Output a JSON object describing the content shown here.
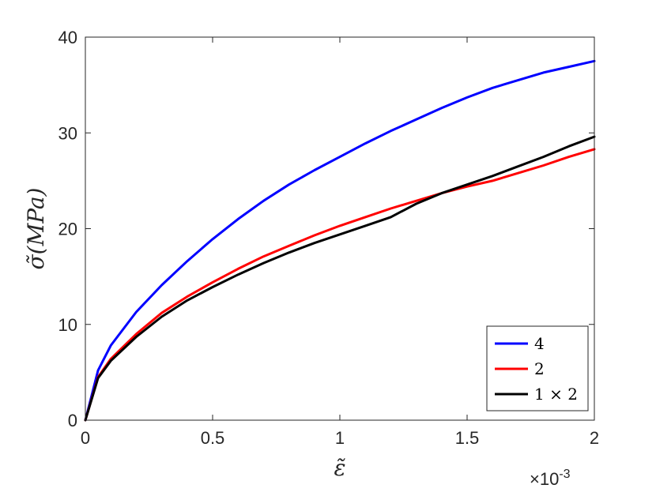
{
  "chart_data": {
    "type": "line",
    "title": "",
    "xlabel": "ε̃",
    "ylabel": "σ̃(MPa)",
    "x_multiplier_label": "×10",
    "x_multiplier_exponent": "-3",
    "xlim": [
      0,
      0.002
    ],
    "ylim": [
      0,
      40
    ],
    "x_ticks": [
      0,
      0.0005,
      0.001,
      0.0015,
      0.002
    ],
    "x_tick_labels": [
      "0",
      "0.5",
      "1",
      "1.5",
      "2"
    ],
    "y_ticks": [
      0,
      10,
      20,
      30,
      40
    ],
    "y_tick_labels": [
      "0",
      "10",
      "20",
      "30",
      "40"
    ],
    "grid": false,
    "legend_position": "bottom-right",
    "series": [
      {
        "name": "4",
        "color": "#0000ff",
        "x": [
          0,
          5e-05,
          0.0001,
          0.0002,
          0.0003,
          0.0004,
          0.0005,
          0.0006,
          0.0007,
          0.0008,
          0.0009,
          0.001,
          0.0011,
          0.0012,
          0.0013,
          0.0014,
          0.0015,
          0.0016,
          0.0017,
          0.0018,
          0.0019,
          0.002
        ],
        "y": [
          0,
          5.2,
          7.8,
          11.3,
          14.1,
          16.6,
          18.9,
          21.0,
          22.9,
          24.6,
          26.1,
          27.5,
          28.9,
          30.2,
          31.4,
          32.6,
          33.7,
          34.7,
          35.5,
          36.3,
          36.9,
          37.5
        ]
      },
      {
        "name": "2",
        "color": "#ff0000",
        "x": [
          0,
          5e-05,
          0.0001,
          0.0002,
          0.0003,
          0.0004,
          0.0005,
          0.0006,
          0.0007,
          0.0008,
          0.0009,
          0.001,
          0.0011,
          0.0012,
          0.0013,
          0.0014,
          0.0015,
          0.0016,
          0.0017,
          0.0018,
          0.0019,
          0.002
        ],
        "y": [
          0,
          4.5,
          6.4,
          9.0,
          11.2,
          12.9,
          14.4,
          15.8,
          17.1,
          18.2,
          19.3,
          20.3,
          21.2,
          22.1,
          22.9,
          23.7,
          24.4,
          25.0,
          25.8,
          26.6,
          27.5,
          28.3
        ]
      },
      {
        "name": "1 × 2",
        "color": "#000000",
        "x": [
          0,
          5e-05,
          0.0001,
          0.0002,
          0.0003,
          0.0004,
          0.0005,
          0.0006,
          0.0007,
          0.0008,
          0.0009,
          0.001,
          0.0011,
          0.0012,
          0.0013,
          0.0014,
          0.0015,
          0.0016,
          0.0017,
          0.0018,
          0.0019,
          0.002
        ],
        "y": [
          0,
          4.4,
          6.2,
          8.7,
          10.8,
          12.5,
          13.9,
          15.2,
          16.4,
          17.5,
          18.5,
          19.4,
          20.3,
          21.2,
          22.6,
          23.7,
          24.6,
          25.5,
          26.5,
          27.5,
          28.6,
          29.6
        ]
      }
    ]
  }
}
